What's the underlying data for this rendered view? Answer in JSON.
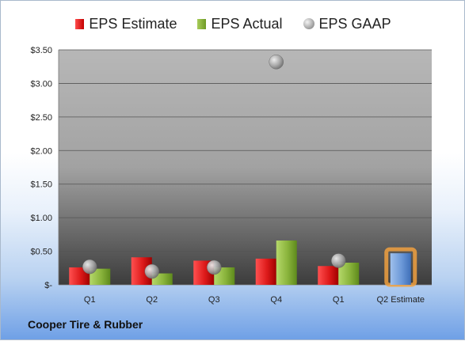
{
  "company": "Cooper Tire & Rubber",
  "legend": {
    "estimate": "EPS Estimate",
    "actual": "EPS Actual",
    "gaap": "EPS GAAP"
  },
  "colors": {
    "estimate": "#cc1111",
    "actual": "#7fa832",
    "gaap": "#9a9a9a",
    "forecast": "#5f8fd1",
    "forecast_glow": "#f0a040"
  },
  "chart_data": {
    "type": "bar",
    "categories": [
      "Q1",
      "Q2",
      "Q3",
      "Q4",
      "Q1",
      "Q2 Estimate"
    ],
    "series": [
      {
        "name": "EPS Estimate",
        "values": [
          0.26,
          0.41,
          0.36,
          0.39,
          0.28,
          0.47
        ]
      },
      {
        "name": "EPS Actual",
        "values": [
          0.24,
          0.17,
          0.26,
          0.66,
          0.33,
          null
        ]
      },
      {
        "name": "EPS GAAP",
        "type": "scatter",
        "values": [
          0.27,
          0.2,
          0.26,
          3.32,
          0.36,
          null
        ]
      }
    ],
    "forecast_category": "Q2 Estimate",
    "ylim": [
      0,
      3.5
    ],
    "yticks": [
      0,
      0.5,
      1.0,
      1.5,
      2.0,
      2.5,
      3.0,
      3.5
    ],
    "ytick_labels": [
      "$-",
      "$0.50",
      "$1.00",
      "$1.50",
      "$2.00",
      "$2.50",
      "$3.00",
      "$3.50"
    ],
    "grid": true,
    "legend_position": "top"
  }
}
